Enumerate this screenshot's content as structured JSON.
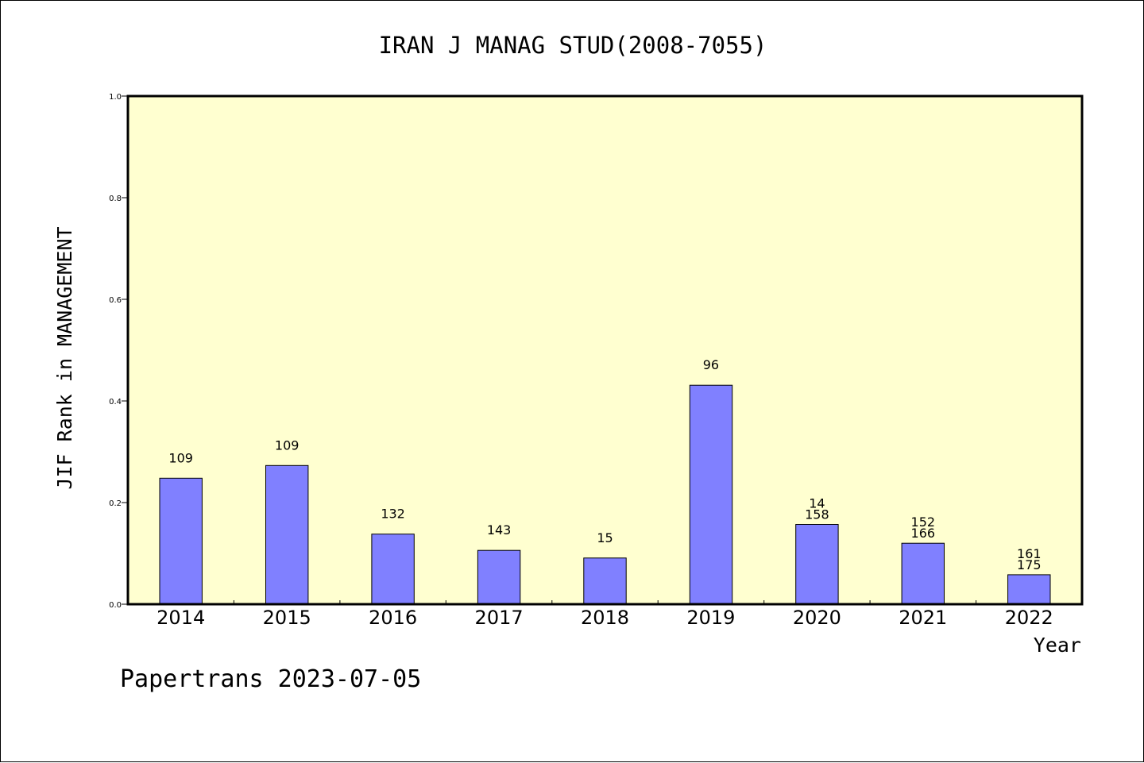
{
  "chart_data": {
    "type": "bar",
    "title": "IRAN J MANAG STUD(2008-7055)",
    "xlabel": "Year",
    "ylabel": "JIF Rank in MANAGEMENT",
    "footer": "Papertrans 2023-07-05",
    "ylim": [
      0,
      1.0
    ],
    "yticks": [
      "0.0",
      "0.2",
      "0.4",
      "0.6",
      "0.8",
      "1.0"
    ],
    "grid": false,
    "colors": {
      "plot_background": "#ffffd0",
      "bar_fill": "#8080ff",
      "bar_stroke": "#000000",
      "axis": "#000000"
    },
    "categories": [
      "2014",
      "2015",
      "2016",
      "2017",
      "2018",
      "2019",
      "2020",
      "2021",
      "2022"
    ],
    "values": [
      0.248,
      0.273,
      0.138,
      0.106,
      0.091,
      0.431,
      0.157,
      0.12,
      0.058
    ],
    "data_labels": [
      [
        "109"
      ],
      [
        "109"
      ],
      [
        "132"
      ],
      [
        "143"
      ],
      [
        "15"
      ],
      [
        "96"
      ],
      [
        "14",
        "158"
      ],
      [
        "152",
        "166"
      ],
      [
        "161",
        "175"
      ]
    ]
  }
}
